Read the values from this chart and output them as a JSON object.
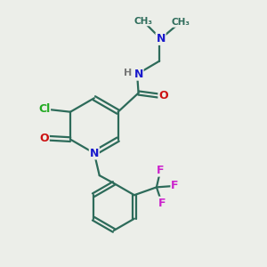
{
  "background_color": "#eceee9",
  "bond_color": "#2d6b5a",
  "bond_width": 1.6,
  "atom_colors": {
    "N": "#1a1acc",
    "O": "#cc1111",
    "Cl": "#22aa22",
    "F": "#cc22cc",
    "H": "#777777",
    "C": "#2d6b5a"
  }
}
